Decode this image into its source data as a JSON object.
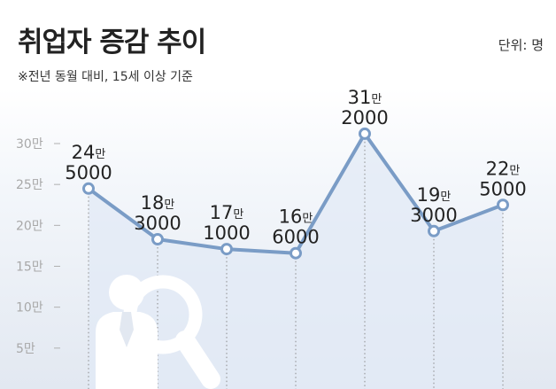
{
  "header": {
    "title": "취업자 증감 추이",
    "unit": "단위: 명",
    "note": "※전년 동월 대비, 15세 이상 기준"
  },
  "chart_data": {
    "type": "area",
    "title": "취업자 증감 추이",
    "unit": "명",
    "ylim": [
      0,
      300000
    ],
    "yticks": [
      {
        "value": 50000,
        "label": "5만"
      },
      {
        "value": 100000,
        "label": "10만"
      },
      {
        "value": 150000,
        "label": "15만"
      },
      {
        "value": 200000,
        "label": "20만"
      },
      {
        "value": 250000,
        "label": "25만"
      },
      {
        "value": 300000,
        "label": "30만"
      }
    ],
    "series": [
      {
        "values": [
          245000,
          183000,
          171000,
          166000,
          312000,
          193000,
          225000
        ],
        "labels": [
          {
            "man": "24",
            "suffix": "만",
            "rest": "5000"
          },
          {
            "man": "18",
            "suffix": "만",
            "rest": "3000"
          },
          {
            "man": "17",
            "suffix": "만",
            "rest": "1000"
          },
          {
            "man": "16",
            "suffix": "만",
            "rest": "6000"
          },
          {
            "man": "31",
            "suffix": "만",
            "rest": "2000"
          },
          {
            "man": "19",
            "suffix": "만",
            "rest": "3000"
          },
          {
            "man": "22",
            "suffix": "만",
            "rest": "5000"
          }
        ]
      }
    ],
    "grid": false,
    "colors": {
      "line": "#7a9cc6",
      "area": "#e2eaf5",
      "background_top": "#f3f6fa",
      "background_bottom": "#e3e9f2",
      "icon": "#ffffff"
    }
  }
}
